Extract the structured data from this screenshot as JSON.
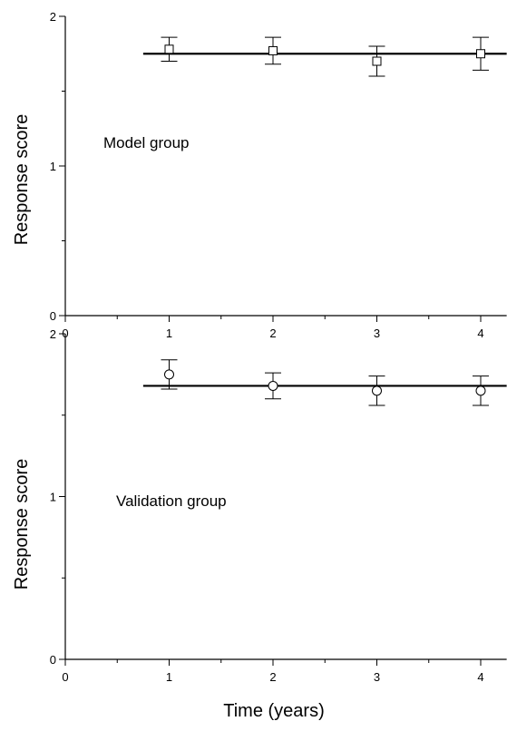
{
  "chart_data": [
    {
      "type": "scatter",
      "panel": "top",
      "annotation": "Model group",
      "ylabel": "Response score",
      "xlabel": "",
      "xlim": [
        0,
        4.25
      ],
      "ylim": [
        0,
        2
      ],
      "xticks": [
        "0",
        "1",
        "2",
        "3",
        "4"
      ],
      "yticks": [
        "0",
        "1",
        "2"
      ],
      "marker": "square",
      "x": [
        1,
        2,
        3,
        4
      ],
      "y": [
        1.78,
        1.77,
        1.7,
        1.75
      ],
      "y_err_low": [
        1.7,
        1.68,
        1.6,
        1.64
      ],
      "y_err_high": [
        1.86,
        1.86,
        1.8,
        1.86
      ],
      "fit_line": {
        "x": [
          0.75,
          4.25
        ],
        "y": [
          1.75,
          1.75
        ]
      }
    },
    {
      "type": "scatter",
      "panel": "bottom",
      "annotation": "Validation group",
      "ylabel": "Response score",
      "xlabel": "Time (years)",
      "xlim": [
        0,
        4.25
      ],
      "ylim": [
        0,
        2
      ],
      "xticks": [
        "0",
        "1",
        "2",
        "3",
        "4"
      ],
      "yticks": [
        "0",
        "1",
        "2"
      ],
      "marker": "circle",
      "x": [
        1,
        2,
        3,
        4
      ],
      "y": [
        1.75,
        1.68,
        1.65,
        1.65
      ],
      "y_err_low": [
        1.66,
        1.6,
        1.56,
        1.56
      ],
      "y_err_high": [
        1.84,
        1.76,
        1.74,
        1.74
      ],
      "fit_line": {
        "x": [
          0.75,
          4.25
        ],
        "y": [
          1.68,
          1.68
        ]
      }
    }
  ]
}
